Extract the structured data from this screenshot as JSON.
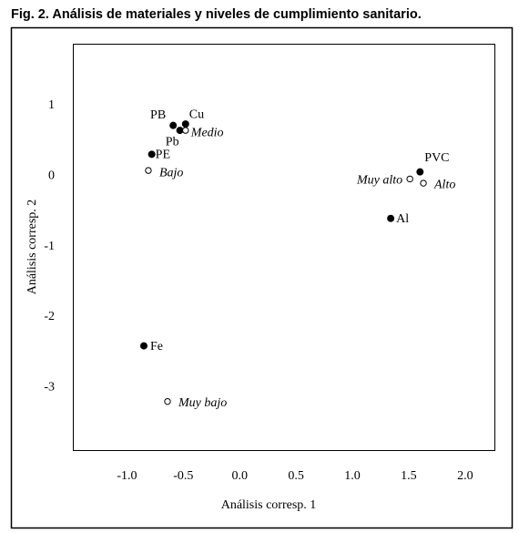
{
  "chart_data": {
    "type": "scatter",
    "title": "Fig. 2. Análisis de materiales y niveles de cumplimiento sanitario.",
    "x_label": "Análisis corresp. 1",
    "y_label": "Análisis corresp. 2",
    "xlim": [
      -1.48,
      2.26
    ],
    "ylim": [
      -3.89,
      1.88
    ],
    "xticks": [
      {
        "value": -1,
        "label": "-1.0"
      },
      -0.5,
      {
        "value": 0,
        "label": "0.0"
      },
      0.5,
      {
        "value": 1,
        "label": "1.0"
      },
      1.5,
      {
        "value": 2,
        "label": "2.0"
      }
    ],
    "yticks": [
      1,
      0,
      -1,
      -2,
      -3
    ],
    "grid": false,
    "series": [
      {
        "marker": "filled",
        "color": "#000000",
        "labels": [
          "PB",
          "Cu",
          "Pb",
          "PE",
          "Fe",
          "PVC",
          "Al"
        ],
        "x": [
          -0.59,
          -0.48,
          -0.53,
          -0.78,
          -0.85,
          1.6,
          1.34
        ],
        "values": [
          0.72,
          0.74,
          0.65,
          0.31,
          -2.41,
          0.06,
          -0.6
        ]
      },
      {
        "marker": "open",
        "color": "#000000",
        "labels": [
          "Medio",
          "Bajo",
          "Muy alto",
          "Alto",
          "Muy bajo"
        ],
        "x": [
          -0.48,
          -0.81,
          1.51,
          1.63,
          -0.64
        ],
        "values": [
          0.65,
          0.08,
          -0.04,
          -0.1,
          -3.2
        ]
      }
    ]
  }
}
